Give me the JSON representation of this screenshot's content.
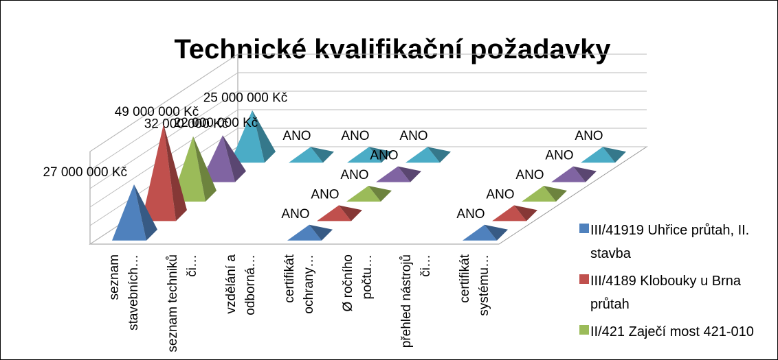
{
  "chart_data": {
    "type": "pyramid3d",
    "title": "Technické kvalifikační požadavky",
    "categories": [
      "seznam stavebních…",
      "seznam techniků či…",
      "vzdělání a odborná…",
      "certifikát ochrany…",
      "Ø ročního počtu…",
      "přehled nástrojů či…",
      "certifikát systému…"
    ],
    "series": [
      {
        "name": "III/41919 Uhřice průtah, II. stavba",
        "color": "#4f81bd",
        "values": [
          27000000,
          null,
          null,
          null,
          null,
          null,
          null
        ],
        "value_labels": [
          "27 000 000 Kč",
          null,
          null,
          "ANO",
          null,
          null,
          "ANO"
        ]
      },
      {
        "name": "III/4189 Klobouky u Brna průtah",
        "color": "#c0504d",
        "values": [
          49000000,
          null,
          null,
          null,
          null,
          null,
          null
        ],
        "value_labels": [
          "49 000 000 Kč",
          null,
          null,
          "ANO",
          null,
          null,
          "ANO"
        ]
      },
      {
        "name": "II/421 Zaječí most 421-010",
        "color": "#9bbb59",
        "values": [
          32000000,
          null,
          null,
          null,
          null,
          null,
          null
        ],
        "value_labels": [
          "32 000 000 Kč",
          null,
          null,
          "ANO",
          null,
          null,
          "ANO"
        ]
      },
      {
        "color": "#8064a2",
        "values": [
          22000000,
          null,
          null,
          null,
          null,
          null,
          null
        ],
        "value_labels": [
          "22 000 000 Kč",
          null,
          null,
          "ANO",
          null,
          null,
          "ANO"
        ]
      },
      {
        "color": "#4bacc6",
        "values": [
          25000000,
          null,
          null,
          null,
          null,
          null,
          null
        ],
        "value_labels": [
          "25 000 000 Kč",
          "ANO",
          "ANO",
          "ANO",
          null,
          null,
          "ANO"
        ]
      }
    ],
    "ylim": [
      0,
      50000000
    ],
    "yticks": [
      0,
      10000000,
      20000000,
      30000000,
      40000000,
      50000000
    ],
    "grid": true
  }
}
